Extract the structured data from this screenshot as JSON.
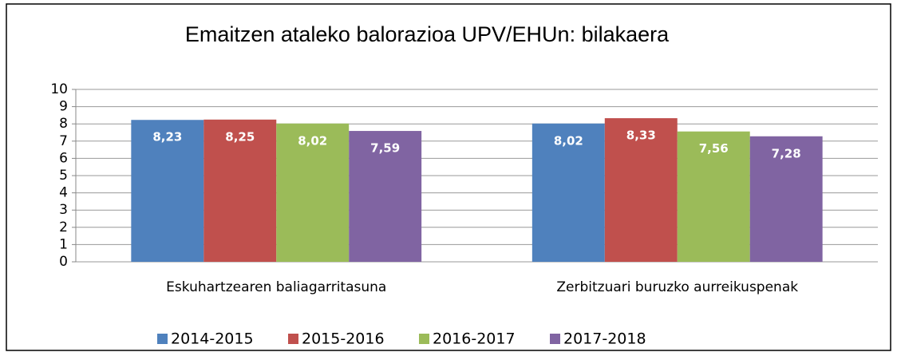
{
  "chart_data": {
    "type": "bar",
    "title": "Emaitzen ataleko balorazioa UPV/EHUn: bilakaera",
    "categories": [
      "Eskuhartzearen baliagarritasuna",
      "Zerbitzuari buruzko aurreikuspenak"
    ],
    "series": [
      {
        "name": "2014-2015",
        "color": "#4f81bd",
        "values": [
          8.23,
          8.02
        ],
        "value_labels": [
          "8,23",
          "8,02"
        ]
      },
      {
        "name": "2015-2016",
        "color": "#c0504d",
        "values": [
          8.25,
          8.33
        ],
        "value_labels": [
          "8,25",
          "8,33"
        ]
      },
      {
        "name": "2016-2017",
        "color": "#9bbb59",
        "values": [
          8.02,
          7.56
        ],
        "value_labels": [
          "8,02",
          "7,56"
        ]
      },
      {
        "name": "2017-2018",
        "color": "#8064a2",
        "values": [
          7.59,
          7.28
        ],
        "value_labels": [
          "7,59",
          "7,28"
        ]
      }
    ],
    "ylim": [
      0,
      10
    ],
    "yticks": [
      0,
      1,
      2,
      3,
      4,
      5,
      6,
      7,
      8,
      9,
      10
    ],
    "grid": true,
    "legend": "bottom"
  }
}
